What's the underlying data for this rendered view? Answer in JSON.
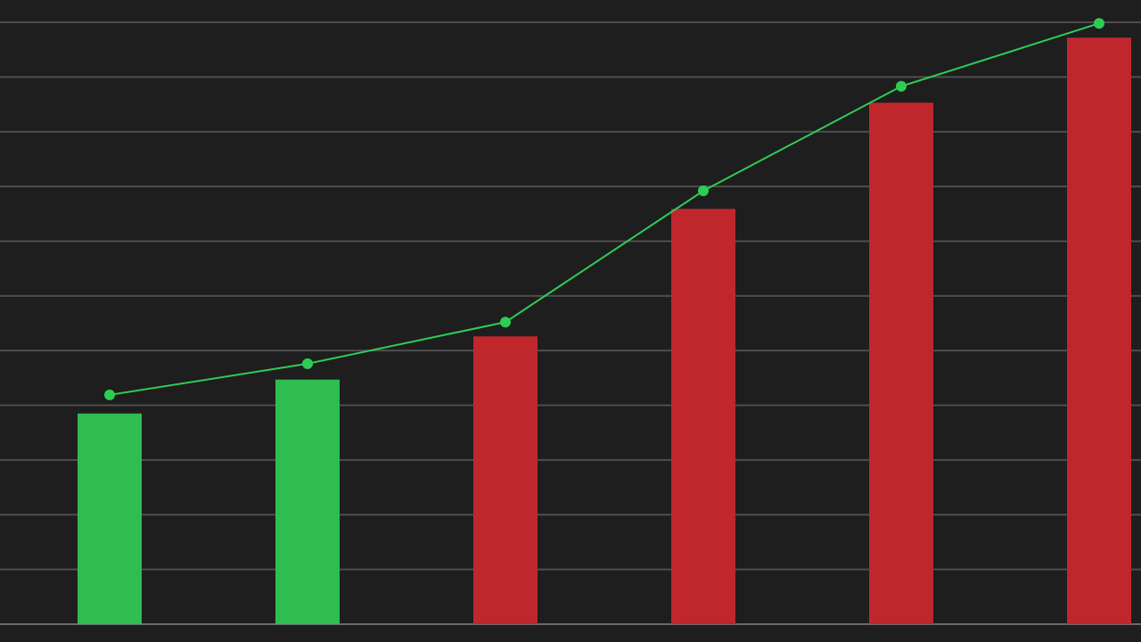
{
  "chart_data": {
    "type": "bar-line",
    "categories": [
      null,
      null,
      null,
      null,
      null,
      null
    ],
    "series": [
      {
        "type": "bar",
        "colors": [
          "#2ebd4e",
          "#2ebd4e",
          "#c0272d",
          "#c0272d",
          "#c0272d",
          "#c0272d"
        ],
        "values": [
          3.85,
          4.47,
          5.26,
          7.59,
          9.53,
          10.72
        ]
      },
      {
        "type": "line",
        "color": "#2ecc55",
        "values": [
          4.19,
          4.76,
          5.52,
          7.92,
          9.83,
          10.98
        ]
      }
    ],
    "ylim": [
      0,
      11
    ],
    "yticks": [
      0,
      1,
      2,
      3,
      4,
      5,
      6,
      7,
      8,
      9,
      10,
      11
    ],
    "grid": true
  }
}
